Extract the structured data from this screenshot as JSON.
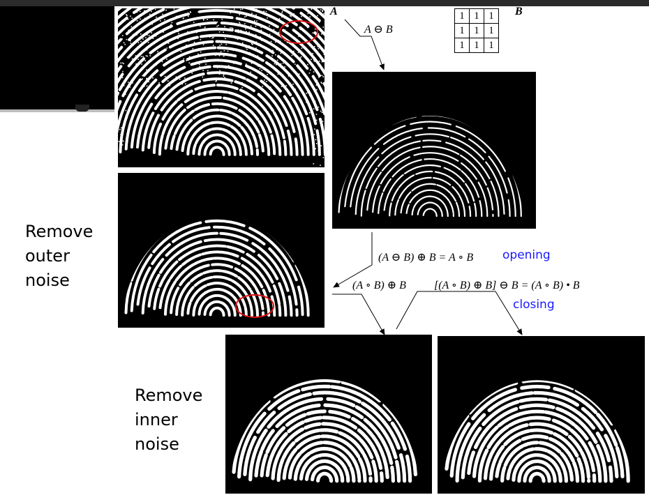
{
  "structuring_element": {
    "label": "B",
    "cells": [
      [
        "1",
        "1",
        "1"
      ],
      [
        "1",
        "1",
        "1"
      ],
      [
        "1",
        "1",
        "1"
      ]
    ]
  },
  "images": {
    "original": {
      "label": "A"
    },
    "eroded": {
      "caption": "A ⊖ B"
    },
    "opened": {
      "caption": "(A ⊖ B) ⊕ B = A ∘ B",
      "tag": "opening"
    },
    "dilated": {
      "caption": "(A ∘ B) ⊕ B"
    },
    "closed": {
      "caption": "[(A ∘ B) ⊕ B] ⊖ B = (A ∘ B) • B",
      "tag": "closing"
    }
  },
  "side_labels": {
    "outer": [
      "Remove",
      "outer",
      "noise"
    ],
    "inner": [
      "Remove",
      "inner",
      "noise"
    ]
  },
  "colors": {
    "highlight_circle": "#e01010",
    "tag_text": "#1a1aff"
  }
}
